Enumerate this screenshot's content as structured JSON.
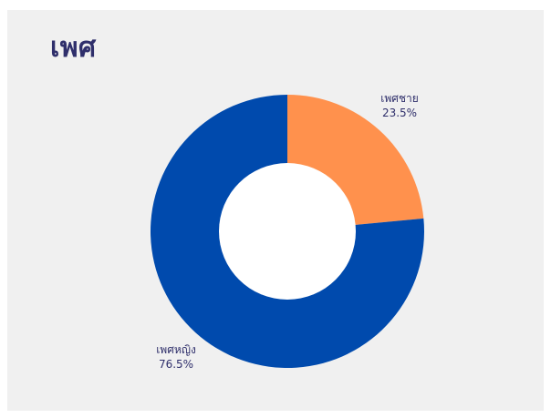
{
  "title": "เพศ",
  "chart_data": {
    "type": "pie",
    "title": "เพศ",
    "donut": true,
    "slices": [
      {
        "label": "เพศชาย",
        "value": 23.5,
        "value_label": "23.5%",
        "color": "#ff914d"
      },
      {
        "label": "เพศหญิง",
        "value": 76.5,
        "value_label": "76.5%",
        "color": "#004aad"
      }
    ],
    "legend": "none"
  },
  "colors": {
    "background": "#f0f0f0",
    "title": "#2f2f6b",
    "hole": "#ffffff"
  }
}
